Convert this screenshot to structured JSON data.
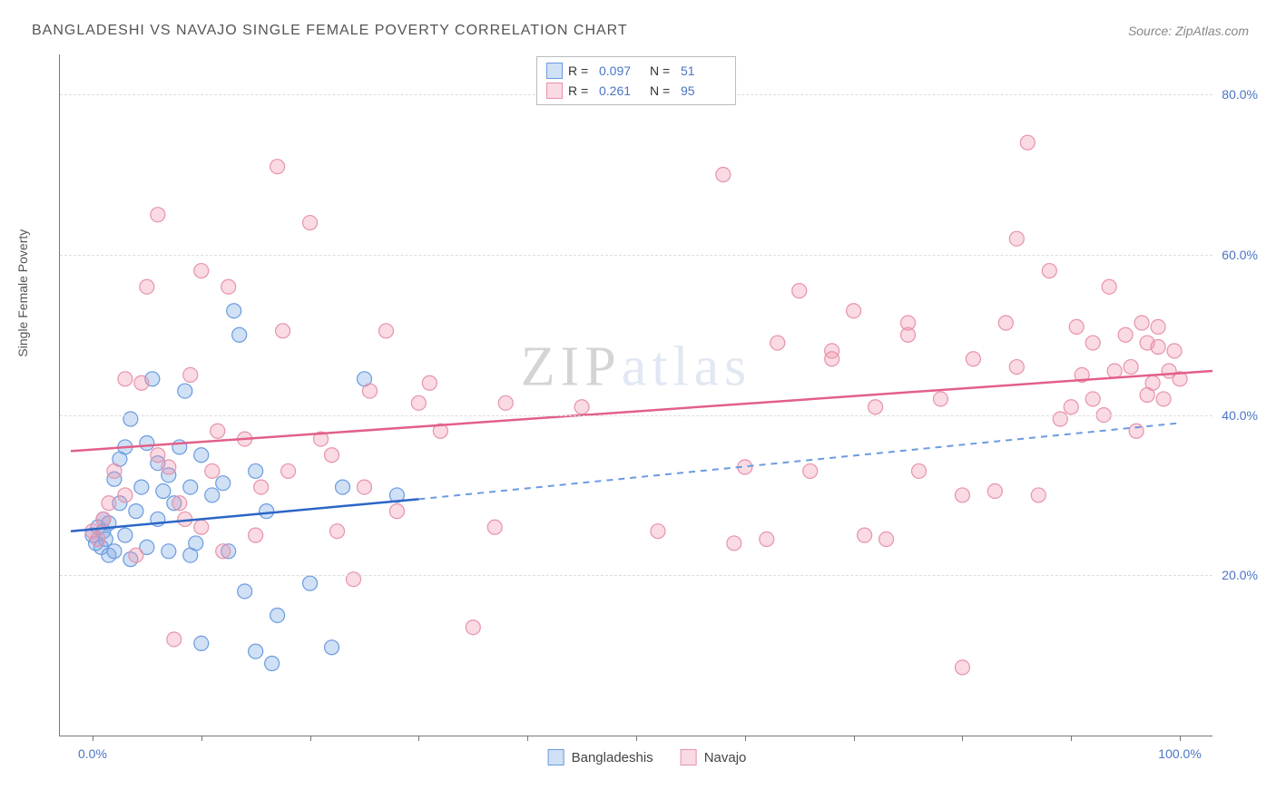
{
  "title": "BANGLADESHI VS NAVAJO SINGLE FEMALE POVERTY CORRELATION CHART",
  "source": "Source: ZipAtlas.com",
  "watermark": "ZIPatlas",
  "chart": {
    "type": "scatter",
    "ylabel": "Single Female Poverty",
    "xlim": [
      -3,
      103
    ],
    "ylim": [
      0,
      85
    ],
    "xtick_positions": [
      0,
      10,
      20,
      30,
      40,
      50,
      60,
      70,
      80,
      90,
      100
    ],
    "xtick_labels": {
      "0": "0.0%",
      "100": "100.0%"
    },
    "ytick_positions": [
      20,
      40,
      60,
      80
    ],
    "ytick_labels": [
      "20.0%",
      "40.0%",
      "60.0%",
      "80.0%"
    ],
    "background_color": "#ffffff",
    "grid_color": "#dddddd",
    "tick_label_color": "#4a75c5",
    "axis_color": "#777777",
    "marker_radius": 8,
    "marker_stroke_width": 1.2,
    "series": [
      {
        "name": "Bangladeshis",
        "fill": "rgba(120,165,225,0.35)",
        "stroke": "#6b9be0",
        "r_value": "0.097",
        "n_value": "51",
        "trend": {
          "x1": -2,
          "y1": 25.5,
          "x2": 30,
          "y2": 29.5,
          "x2_ext": 100,
          "y2_ext": 39,
          "solid_color": "#2b65c7",
          "dash_color": "#6b9be0",
          "width": 2.5
        },
        "points": [
          [
            0,
            25
          ],
          [
            0.3,
            24
          ],
          [
            0.5,
            26
          ],
          [
            0.8,
            23.5
          ],
          [
            1,
            25.5
          ],
          [
            1,
            27
          ],
          [
            1.2,
            24.5
          ],
          [
            1.5,
            26.5
          ],
          [
            1.5,
            22.5
          ],
          [
            2,
            32
          ],
          [
            2,
            23
          ],
          [
            2.5,
            29
          ],
          [
            2.5,
            34.5
          ],
          [
            3,
            36
          ],
          [
            3,
            25
          ],
          [
            3.5,
            39.5
          ],
          [
            3.5,
            22
          ],
          [
            4,
            28
          ],
          [
            4.5,
            31
          ],
          [
            5,
            36.5
          ],
          [
            5,
            23.5
          ],
          [
            5.5,
            44.5
          ],
          [
            6,
            34
          ],
          [
            6,
            27
          ],
          [
            6.5,
            30.5
          ],
          [
            7,
            32.5
          ],
          [
            7,
            23
          ],
          [
            7.5,
            29
          ],
          [
            8,
            36
          ],
          [
            8.5,
            43
          ],
          [
            9,
            31
          ],
          [
            9,
            22.5
          ],
          [
            9.5,
            24
          ],
          [
            10,
            11.5
          ],
          [
            10,
            35
          ],
          [
            11,
            30
          ],
          [
            12,
            31.5
          ],
          [
            12.5,
            23
          ],
          [
            13,
            53
          ],
          [
            13.5,
            50
          ],
          [
            14,
            18
          ],
          [
            15,
            33
          ],
          [
            15,
            10.5
          ],
          [
            16,
            28
          ],
          [
            16.5,
            9
          ],
          [
            17,
            15
          ],
          [
            20,
            19
          ],
          [
            22,
            11
          ],
          [
            23,
            31
          ],
          [
            25,
            44.5
          ],
          [
            28,
            30
          ]
        ]
      },
      {
        "name": "Navajo",
        "fill": "rgba(240,150,175,0.35)",
        "stroke": "#e793aa",
        "r_value": "0.261",
        "n_value": "95",
        "trend": {
          "x1": -2,
          "y1": 35.5,
          "x2": 103,
          "y2": 45.5,
          "solid_color": "#e26088",
          "width": 2.5
        },
        "points": [
          [
            0,
            25.5
          ],
          [
            0.5,
            24.5
          ],
          [
            1,
            27
          ],
          [
            1.5,
            29
          ],
          [
            2,
            33
          ],
          [
            3,
            44.5
          ],
          [
            3,
            30
          ],
          [
            4,
            22.5
          ],
          [
            4.5,
            44
          ],
          [
            5,
            56
          ],
          [
            6,
            35
          ],
          [
            6,
            65
          ],
          [
            7,
            33.5
          ],
          [
            7.5,
            12
          ],
          [
            8,
            29
          ],
          [
            8.5,
            27
          ],
          [
            9,
            45
          ],
          [
            10,
            26
          ],
          [
            10,
            58
          ],
          [
            11,
            33
          ],
          [
            11.5,
            38
          ],
          [
            12,
            23
          ],
          [
            12.5,
            56
          ],
          [
            14,
            37
          ],
          [
            15,
            25
          ],
          [
            15.5,
            31
          ],
          [
            17,
            71
          ],
          [
            17.5,
            50.5
          ],
          [
            18,
            33
          ],
          [
            20,
            64
          ],
          [
            21,
            37
          ],
          [
            22,
            35
          ],
          [
            22.5,
            25.5
          ],
          [
            24,
            19.5
          ],
          [
            25,
            31
          ],
          [
            25.5,
            43
          ],
          [
            27,
            50.5
          ],
          [
            28,
            28
          ],
          [
            30,
            41.5
          ],
          [
            31,
            44
          ],
          [
            32,
            38
          ],
          [
            35,
            13.5
          ],
          [
            37,
            26
          ],
          [
            38,
            41.5
          ],
          [
            45,
            41
          ],
          [
            52,
            25.5
          ],
          [
            58,
            70
          ],
          [
            59,
            24
          ],
          [
            60,
            33.5
          ],
          [
            62,
            24.5
          ],
          [
            63,
            49
          ],
          [
            65,
            55.5
          ],
          [
            66,
            33
          ],
          [
            68,
            48
          ],
          [
            68,
            47
          ],
          [
            70,
            53
          ],
          [
            71,
            25
          ],
          [
            72,
            41
          ],
          [
            73,
            24.5
          ],
          [
            75,
            51.5
          ],
          [
            75,
            50
          ],
          [
            76,
            33
          ],
          [
            78,
            42
          ],
          [
            80,
            8.5
          ],
          [
            80,
            30
          ],
          [
            81,
            47
          ],
          [
            83,
            30.5
          ],
          [
            84,
            51.5
          ],
          [
            85,
            62
          ],
          [
            85,
            46
          ],
          [
            86,
            74
          ],
          [
            87,
            30
          ],
          [
            88,
            58
          ],
          [
            89,
            39.5
          ],
          [
            90,
            41
          ],
          [
            90.5,
            51
          ],
          [
            91,
            45
          ],
          [
            92,
            49
          ],
          [
            92,
            42
          ],
          [
            93,
            40
          ],
          [
            93.5,
            56
          ],
          [
            94,
            45.5
          ],
          [
            95,
            50
          ],
          [
            95.5,
            46
          ],
          [
            96,
            38
          ],
          [
            96.5,
            51.5
          ],
          [
            97,
            42.5
          ],
          [
            97,
            49
          ],
          [
            97.5,
            44
          ],
          [
            98,
            48.5
          ],
          [
            98,
            51
          ],
          [
            98.5,
            42
          ],
          [
            99,
            45.5
          ],
          [
            99.5,
            48
          ],
          [
            100,
            44.5
          ]
        ]
      }
    ]
  },
  "legend_top": {
    "r_label": "R =",
    "n_label": "N ="
  },
  "legend_bottom": [
    "Bangladeshis",
    "Navajo"
  ]
}
